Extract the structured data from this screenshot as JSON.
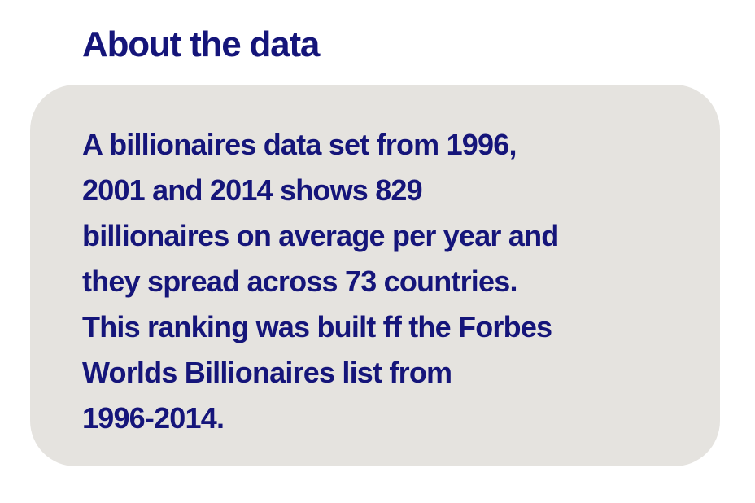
{
  "heading": "About the data",
  "info": {
    "lines": [
      "A billionaires data set from 1996,",
      "2001 and 2014 shows 829",
      "billionaires on average per year and",
      "they spread across 73 countries.",
      "This ranking was built ff the Forbes",
      "Worlds Billionaires list from",
      "1996-2014."
    ]
  },
  "colors": {
    "text": "#15157a",
    "card_background": "#e5e3df",
    "page_background": "#ffffff"
  }
}
